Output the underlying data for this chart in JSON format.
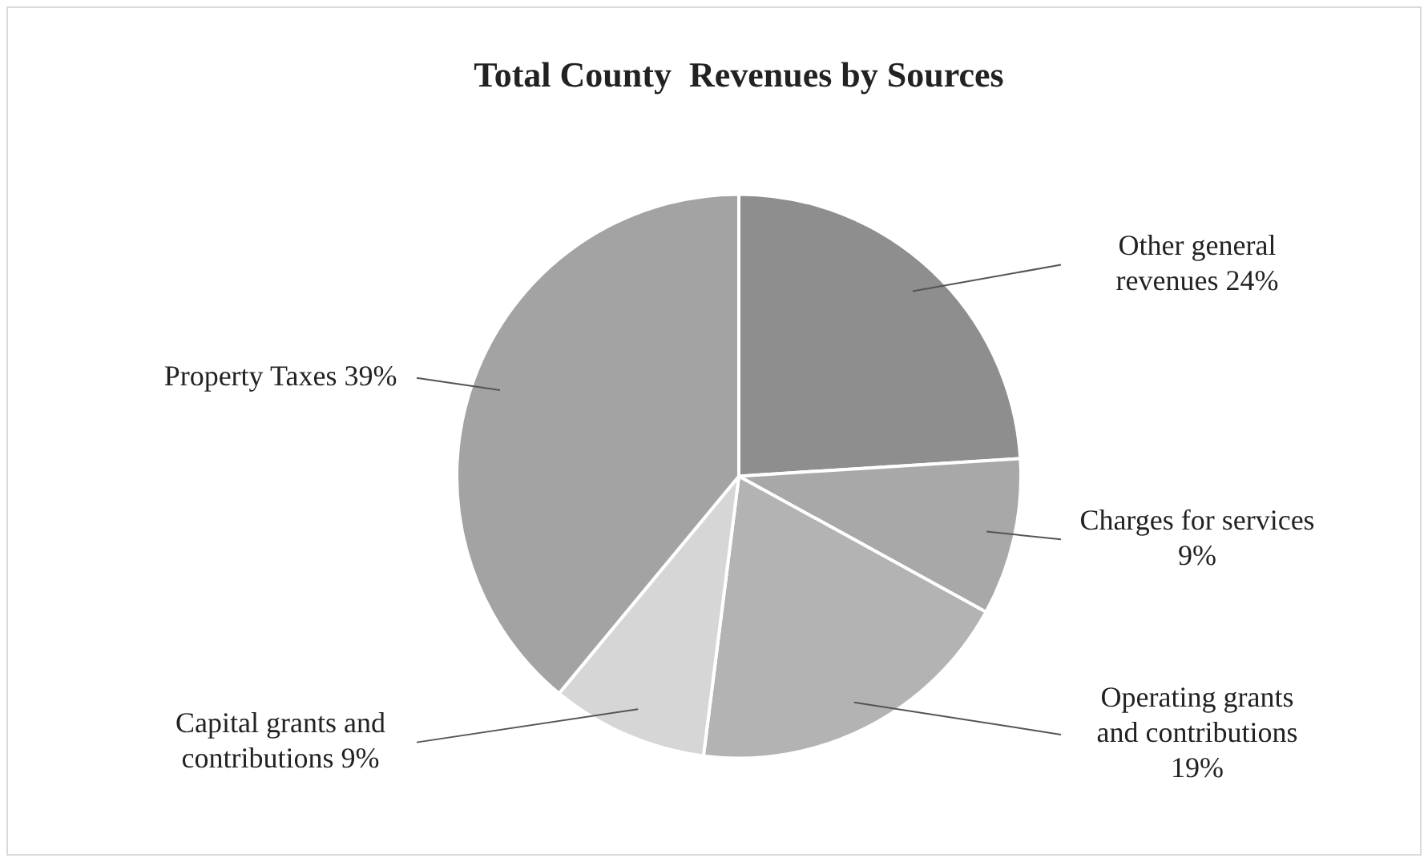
{
  "chart_data": {
    "type": "pie",
    "title": "Total County  Revenues by Sources",
    "categories": [
      "Other general revenues",
      "Charges for services",
      "Operating grants and contributions",
      "Capital grants and contributions",
      "Property Taxes"
    ],
    "values": [
      24,
      9,
      19,
      9,
      39
    ],
    "value_labels": [
      "24%",
      "9%",
      "19%",
      "9%",
      "39%"
    ],
    "colors": [
      "#8e8e8e",
      "#a8a8a8",
      "#b3b3b3",
      "#d6d6d6",
      "#a3a3a3"
    ],
    "legend": false
  }
}
